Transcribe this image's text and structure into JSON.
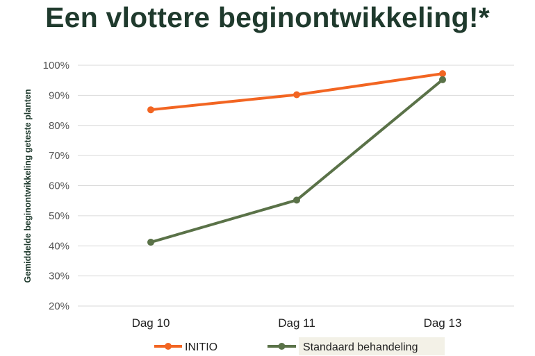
{
  "colors": {
    "initio": "#f26522",
    "standaard": "#5a7248",
    "grid": "#d9d9d9",
    "title": "#1f3a2d"
  },
  "chart_data": {
    "type": "line",
    "title": "Een vlottere beginontwikkeling!*",
    "xlabel": "",
    "ylabel": "Gemiddelde beginontwikkeling geteste planten",
    "categories": [
      "Dag 10",
      "Dag 11",
      "Dag 13"
    ],
    "ylim": [
      20,
      100
    ],
    "yticks": [
      "20%",
      "30%",
      "40%",
      "50%",
      "60%",
      "70%",
      "80%",
      "90%",
      "100%"
    ],
    "grid": true,
    "legend": "bottom",
    "series": [
      {
        "name": "INITIO",
        "values": [
          85.2,
          90.2,
          97.2
        ]
      },
      {
        "name": "Standaard behandeling",
        "values": [
          41.2,
          55.2,
          95.2
        ]
      }
    ]
  }
}
